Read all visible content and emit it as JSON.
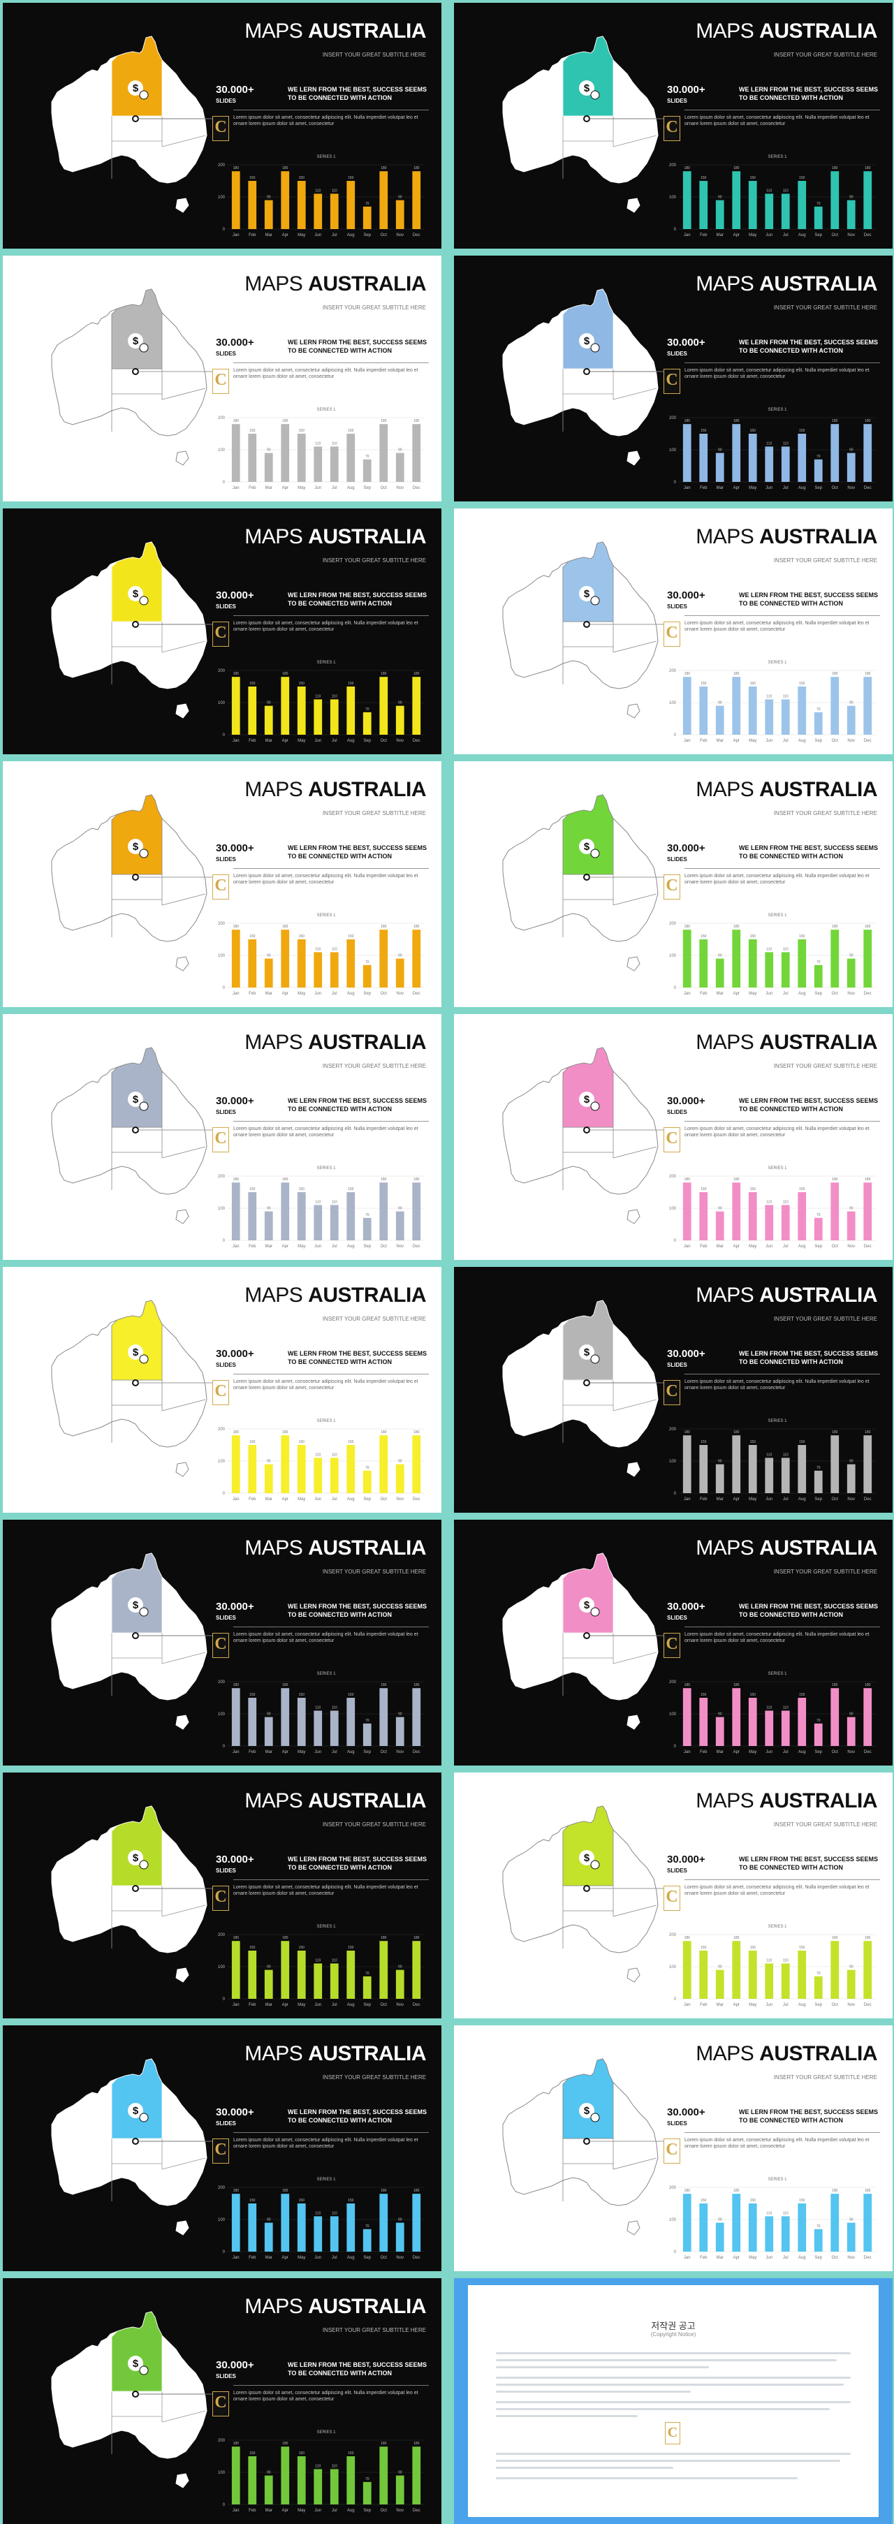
{
  "common": {
    "title_regular": "MAPS",
    "title_bold": "AUSTRALIA",
    "subtitle": "INSERT YOUR GREAT SUBTITLE HERE",
    "big_number": "30.000+",
    "big_label": "SLIDES",
    "headline": "WE LERN FROM THE BEST, SUCCESS SEEMS TO BE CONNECTED WITH ACTION",
    "body": "Lorem ipsum dolor sit amet, consectetur adipiscing elit. Nulla imperdiet volutpat leo et ornare lorem ipsum dolor sit amet, consectetur",
    "badge_letter": "C"
  },
  "slides": [
    {
      "theme": "dark",
      "accent": "#f0a80f"
    },
    {
      "theme": "dark",
      "accent": "#2ec4b0"
    },
    {
      "theme": "light",
      "accent": "#b7b7b7"
    },
    {
      "theme": "dark",
      "accent": "#8fb8e4"
    },
    {
      "theme": "dark",
      "accent": "#f2e51b"
    },
    {
      "theme": "light",
      "accent": "#9cc4ea"
    },
    {
      "theme": "light",
      "accent": "#f0a80f"
    },
    {
      "theme": "light",
      "accent": "#72d63a"
    },
    {
      "theme": "light",
      "accent": "#aab4c8"
    },
    {
      "theme": "light",
      "accent": "#f28ec6"
    },
    {
      "theme": "light",
      "accent": "#f6ef2a"
    },
    {
      "theme": "dark",
      "accent": "#b5b5b5"
    },
    {
      "theme": "dark",
      "accent": "#aab4c8"
    },
    {
      "theme": "dark",
      "accent": "#f28ec6"
    },
    {
      "theme": "dark",
      "accent": "#b6dc2a"
    },
    {
      "theme": "light",
      "accent": "#c3e22a"
    },
    {
      "theme": "dark",
      "accent": "#54c4f0"
    },
    {
      "theme": "light",
      "accent": "#54c4f0"
    },
    {
      "theme": "dark",
      "accent": "#72c83a"
    }
  ],
  "chart_data": {
    "type": "bar",
    "title": "SERIES 1",
    "categories": [
      "Jan",
      "Feb",
      "Mar",
      "Apr",
      "May",
      "Jun",
      "Jul",
      "Aug",
      "Sep",
      "Oct",
      "Nov",
      "Dec"
    ],
    "values": [
      180,
      150,
      90,
      180,
      150,
      110,
      110,
      150,
      70,
      180,
      90,
      180
    ],
    "ylim": [
      0,
      200
    ],
    "yticks": [
      0,
      100,
      200
    ]
  },
  "notice": {
    "title": "저작권 공고",
    "subtitle": "(Copyright Notice)"
  }
}
